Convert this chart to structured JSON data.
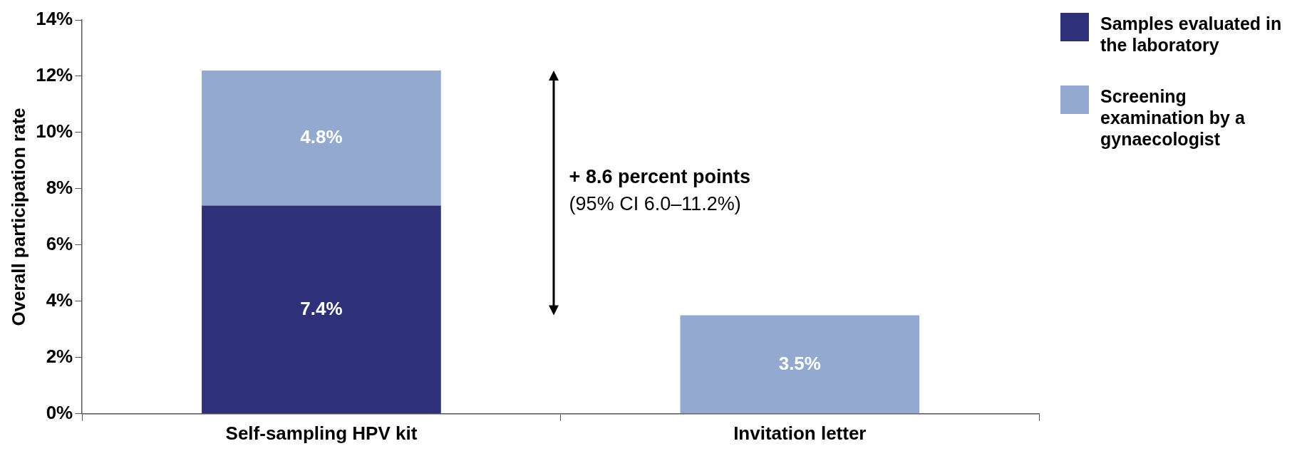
{
  "chart_data": {
    "type": "bar",
    "stacked": true,
    "ylabel": "Overall participation rate",
    "categories": [
      "Self-sampling HPV kit",
      "Invitation letter"
    ],
    "series": [
      {
        "name": "Samples evaluated in the laboratory",
        "color": "#2e3179",
        "values": [
          7.4,
          null
        ],
        "value_labels": [
          "7.4%",
          null
        ]
      },
      {
        "name": "Screening examination by a gynaecologist",
        "color": "#94a9cf",
        "values": [
          4.8,
          3.5
        ],
        "value_labels": [
          "4.8%",
          "3.5%"
        ]
      }
    ],
    "ylim": [
      0,
      14
    ],
    "yticks": [
      {
        "value": 0,
        "label": "0%"
      },
      {
        "value": 2,
        "label": "2%"
      },
      {
        "value": 4,
        "label": "4%"
      },
      {
        "value": 6,
        "label": "6%"
      },
      {
        "value": 8,
        "label": "8%"
      },
      {
        "value": 10,
        "label": "10%"
      },
      {
        "value": 12,
        "label": "12%"
      },
      {
        "value": 14,
        "label": "14%"
      }
    ],
    "grid": false,
    "legend": "right",
    "annotations": [
      "+ 8.6 percent points",
      "(95% CI 6.0–11.2%)"
    ]
  }
}
